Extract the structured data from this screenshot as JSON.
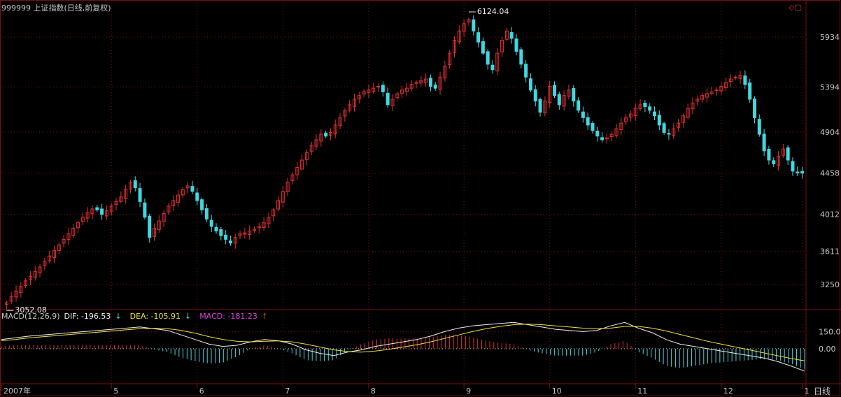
{
  "header": {
    "title": "999999 上证指数(日线,前复权)",
    "period_label": "日线"
  },
  "indicator": {
    "name": "MACD(12,26,9)",
    "dif": "DIF: -196.53",
    "dea": "DEA: -105.91",
    "macd": "MACD: -181.23",
    "dif_arrow": "↓",
    "dea_arrow": "↓",
    "macd_arrow": "↑"
  },
  "chart_data": [
    {
      "type": "candlestick",
      "title": "999999 上证指数(日线,前复权)",
      "y_ticks": [
        3250,
        3611,
        4012,
        4458,
        4904,
        5394,
        5934
      ],
      "ylim": [
        3000,
        6200
      ],
      "x_ticks": [
        "2007年",
        "5",
        "6",
        "7",
        "8",
        "9",
        "10",
        "11",
        "12",
        "1"
      ],
      "annotations": [
        {
          "label": "6124.04",
          "value": 6124.04
        },
        {
          "label": "3052.08",
          "value": 3052.08
        }
      ],
      "colors": {
        "up": "#e03030",
        "down": "#40d8e0",
        "grid": "#7a1010"
      },
      "close_series": [
        3052,
        3120,
        3180,
        3230,
        3290,
        3340,
        3390,
        3440,
        3500,
        3560,
        3620,
        3680,
        3740,
        3800,
        3860,
        3920,
        3980,
        4030,
        4070,
        4060,
        4010,
        4050,
        4100,
        4150,
        4200,
        4280,
        4360,
        4300,
        4150,
        3980,
        3760,
        3860,
        3940,
        4020,
        4100,
        4160,
        4220,
        4280,
        4320,
        4260,
        4160,
        4060,
        3960,
        3880,
        3830,
        3780,
        3740,
        3700,
        3760,
        3800,
        3810,
        3830,
        3850,
        3880,
        3920,
        3980,
        4060,
        4160,
        4260,
        4360,
        4440,
        4520,
        4600,
        4680,
        4760,
        4820,
        4880,
        4860,
        4900,
        4980,
        5060,
        5140,
        5200,
        5260,
        5300,
        5340,
        5360,
        5380,
        5400,
        5340,
        5200,
        5260,
        5320,
        5360,
        5380,
        5420,
        5440,
        5460,
        5480,
        5400,
        5380,
        5500,
        5620,
        5760,
        5900,
        6000,
        6080,
        6124,
        6000,
        5880,
        5760,
        5640,
        5580,
        5760,
        5900,
        6000,
        5920,
        5780,
        5640,
        5500,
        5360,
        5240,
        5120,
        5240,
        5400,
        5300,
        5200,
        5300,
        5360,
        5240,
        5140,
        5060,
        4980,
        4920,
        4860,
        4820,
        4840,
        4880,
        4940,
        5000,
        5060,
        5100,
        5160,
        5200,
        5180,
        5140,
        5080,
        4980,
        4900,
        4880,
        4940,
        5000,
        5080,
        5160,
        5220,
        5260,
        5300,
        5320,
        5340,
        5360,
        5400,
        5440,
        5480,
        5500,
        5520,
        5420,
        5260,
        5060,
        4880,
        4700,
        4600,
        4560,
        4640,
        4720,
        4600,
        4480,
        4460,
        4458
      ]
    },
    {
      "type": "line",
      "title": "MACD(12,26,9)",
      "y_ticks": [
        150.0,
        0.0
      ],
      "ylim": [
        -300,
        250
      ],
      "series": [
        {
          "name": "DIF",
          "color": "#f0f0f0",
          "values": [
            80,
            95,
            110,
            120,
            130,
            140,
            150,
            160,
            170,
            180,
            190,
            175,
            160,
            120,
            80,
            40,
            20,
            30,
            60,
            80,
            70,
            40,
            -10,
            -40,
            -60,
            -30,
            -10,
            20,
            40,
            60,
            80,
            110,
            150,
            180,
            200,
            210,
            220,
            230,
            210,
            190,
            170,
            160,
            150,
            160,
            200,
            230,
            180,
            140,
            80,
            40,
            20,
            0,
            -20,
            -40,
            -60,
            -80,
            -110,
            -150,
            -196
          ]
        },
        {
          "name": "DEA",
          "color": "#f0e040",
          "values": [
            70,
            80,
            95,
            105,
            115,
            125,
            135,
            145,
            155,
            165,
            175,
            178,
            175,
            160,
            135,
            105,
            80,
            65,
            60,
            65,
            68,
            60,
            40,
            15,
            -10,
            -25,
            -30,
            -20,
            -5,
            15,
            35,
            60,
            90,
            120,
            150,
            175,
            195,
            210,
            215,
            210,
            200,
            190,
            180,
            175,
            180,
            195,
            195,
            180,
            155,
            125,
            95,
            65,
            40,
            15,
            -10,
            -35,
            -60,
            -85,
            -106
          ]
        }
      ]
    }
  ]
}
